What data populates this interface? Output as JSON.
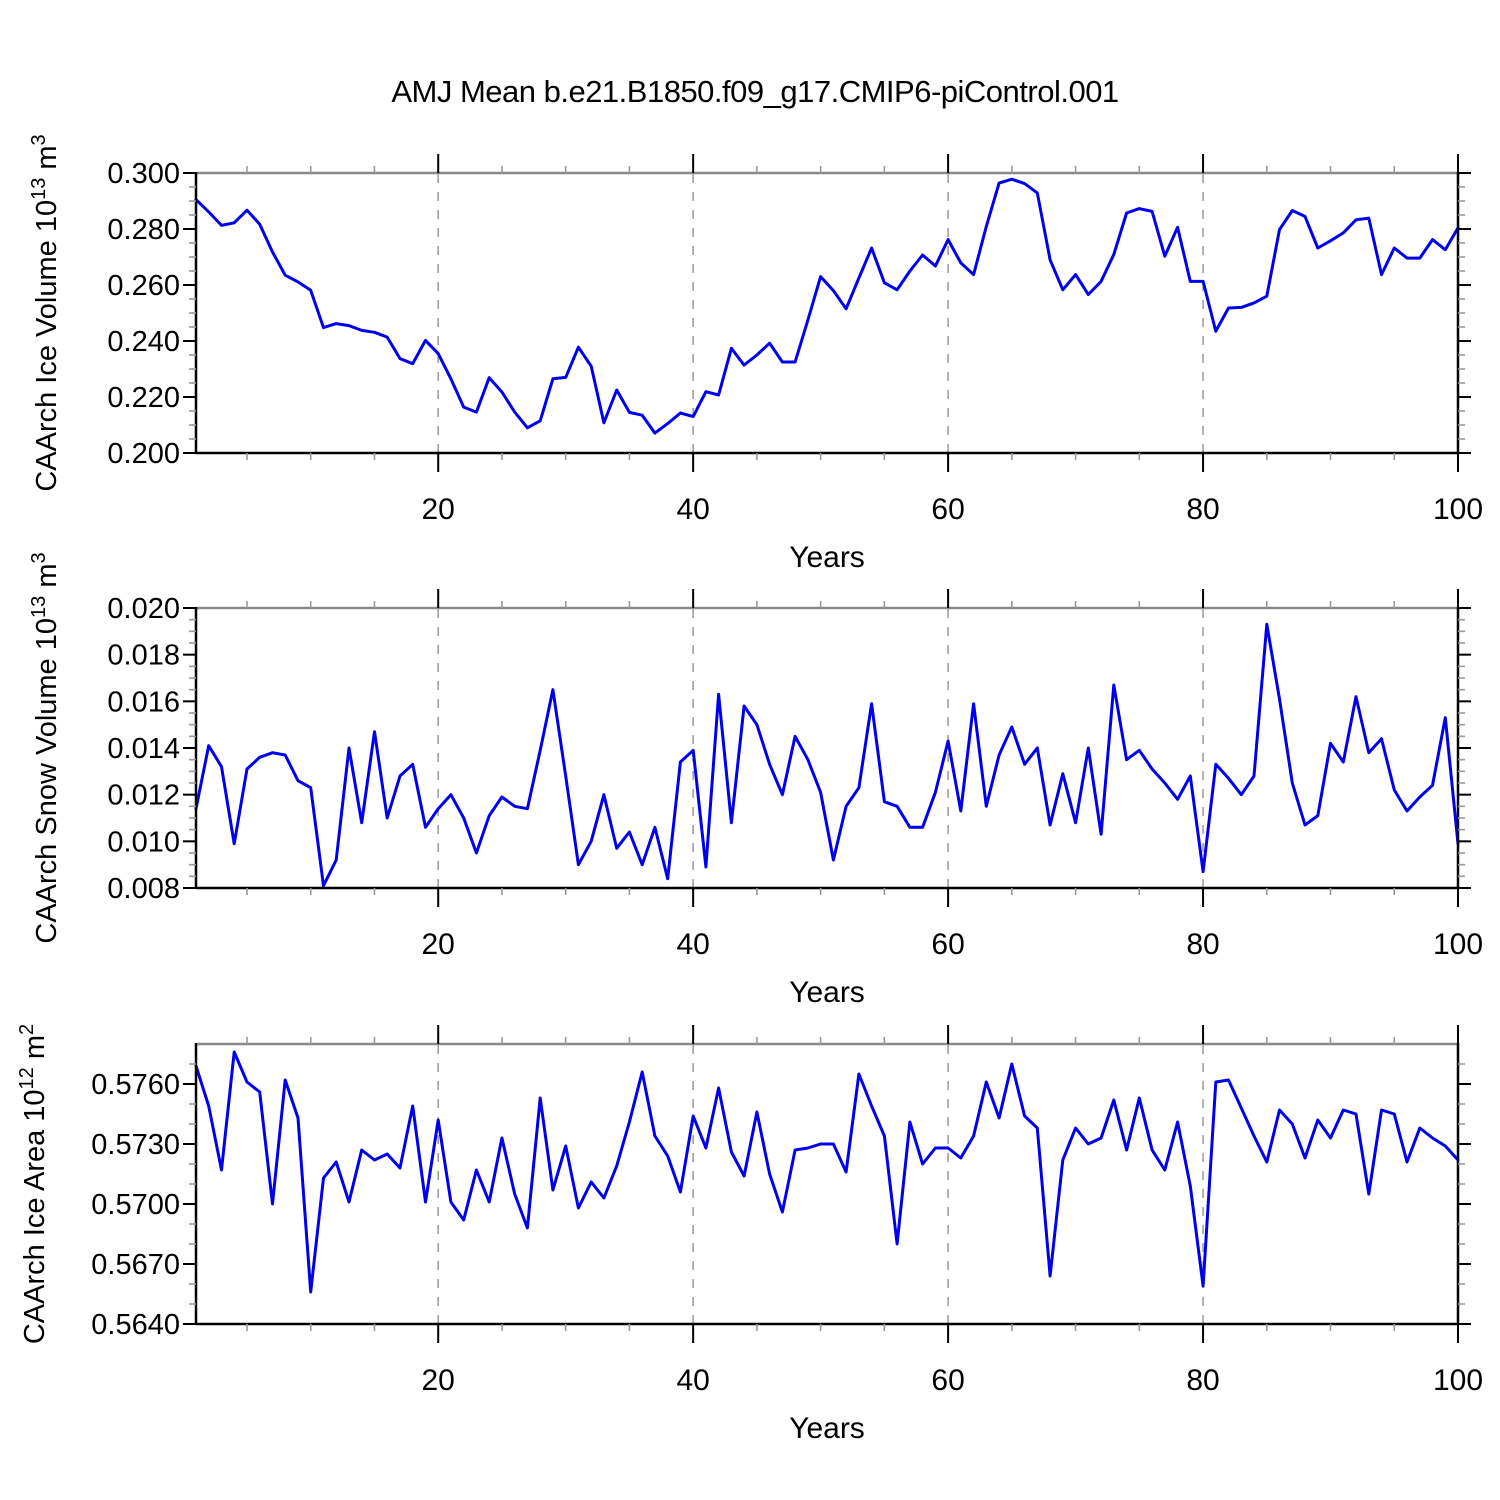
{
  "title": "AMJ Mean b.e21.B1850.f09_g17.CMIP6-piControl.001",
  "style": {
    "line_color": "#0000ee",
    "axis_color": "#000000",
    "frame_top_color": "#8a8a8a",
    "major_tick_color": "#000000",
    "minor_tick_color": "#999999",
    "grid_color": "#999999",
    "text_color": "#000000",
    "background": "#ffffff"
  },
  "x_axis": {
    "label": "Years",
    "min": 1,
    "max": 100,
    "major_ticks": [
      20,
      40,
      60,
      80,
      100
    ],
    "major_labels": [
      "20",
      "40",
      "60",
      "80",
      "100"
    ],
    "minor_step": 5,
    "gridlines": [
      20,
      40,
      60,
      80
    ]
  },
  "chart_data": [
    {
      "id": "ice-volume",
      "type": "line",
      "ylabel_parts": [
        {
          "t": "CAArch Ice Volume 10"
        },
        {
          "t": "13",
          "sup": true
        },
        {
          "t": " m"
        },
        {
          "t": "3",
          "sup": true
        }
      ],
      "xlabel": "Years",
      "ylim": [
        0.2,
        0.3
      ],
      "yticks": [
        {
          "v": 0.2,
          "label": "0.200"
        },
        {
          "v": 0.22,
          "label": "0.220"
        },
        {
          "v": 0.24,
          "label": "0.240"
        },
        {
          "v": 0.26,
          "label": "0.260"
        },
        {
          "v": 0.28,
          "label": "0.280"
        },
        {
          "v": 0.3,
          "label": "0.300"
        }
      ],
      "yminor_step": 0.005,
      "x_start": 1,
      "x_step": 1,
      "values": [
        0.2905,
        0.2861,
        0.2813,
        0.2822,
        0.2867,
        0.2817,
        0.2718,
        0.2635,
        0.2611,
        0.2581,
        0.2448,
        0.2462,
        0.2455,
        0.2438,
        0.2431,
        0.2414,
        0.2337,
        0.2319,
        0.2402,
        0.2355,
        0.2265,
        0.2164,
        0.2146,
        0.2269,
        0.2218,
        0.2146,
        0.209,
        0.2115,
        0.2265,
        0.227,
        0.2378,
        0.231,
        0.2108,
        0.2225,
        0.2145,
        0.2135,
        0.2071,
        0.2105,
        0.2143,
        0.213,
        0.2219,
        0.2207,
        0.2374,
        0.2314,
        0.235,
        0.2392,
        0.2325,
        0.2325,
        0.2475,
        0.263,
        0.258,
        0.2515,
        0.2625,
        0.2732,
        0.2608,
        0.2583,
        0.265,
        0.2707,
        0.2668,
        0.2762,
        0.2679,
        0.2637,
        0.2809,
        0.2964,
        0.2978,
        0.2962,
        0.2929,
        0.269,
        0.2583,
        0.2637,
        0.2566,
        0.2613,
        0.2709,
        0.2857,
        0.2873,
        0.2863,
        0.2703,
        0.2806,
        0.2613,
        0.2613,
        0.2435,
        0.2518,
        0.252,
        0.2536,
        0.256,
        0.2798,
        0.2866,
        0.2845,
        0.2732,
        0.2758,
        0.2786,
        0.2833,
        0.2839,
        0.2637,
        0.2732,
        0.2696,
        0.2696,
        0.2762,
        0.2726,
        0.2804
      ]
    },
    {
      "id": "snow-volume",
      "type": "line",
      "ylabel_parts": [
        {
          "t": "CAArch Snow Volume 10"
        },
        {
          "t": "13",
          "sup": true
        },
        {
          "t": " m"
        },
        {
          "t": "3",
          "sup": true
        }
      ],
      "xlabel": "Years",
      "ylim": [
        0.008,
        0.02
      ],
      "yticks": [
        {
          "v": 0.008,
          "label": "0.008"
        },
        {
          "v": 0.01,
          "label": "0.010"
        },
        {
          "v": 0.012,
          "label": "0.012"
        },
        {
          "v": 0.014,
          "label": "0.014"
        },
        {
          "v": 0.016,
          "label": "0.016"
        },
        {
          "v": 0.018,
          "label": "0.018"
        },
        {
          "v": 0.02,
          "label": "0.020"
        }
      ],
      "yminor_step": 0.0005,
      "x_start": 1,
      "x_step": 1,
      "values": [
        0.0114,
        0.0141,
        0.0132,
        0.0099,
        0.0131,
        0.0136,
        0.0138,
        0.0137,
        0.0126,
        0.0123,
        0.0081,
        0.0092,
        0.014,
        0.0108,
        0.0147,
        0.011,
        0.0128,
        0.0133,
        0.0106,
        0.0114,
        0.012,
        0.011,
        0.0095,
        0.0111,
        0.0119,
        0.0115,
        0.0114,
        0.0139,
        0.0165,
        0.0128,
        0.009,
        0.01,
        0.012,
        0.0097,
        0.0104,
        0.009,
        0.0106,
        0.0084,
        0.0134,
        0.0139,
        0.0089,
        0.0163,
        0.0108,
        0.0158,
        0.015,
        0.0133,
        0.012,
        0.0145,
        0.0135,
        0.0121,
        0.0092,
        0.0115,
        0.0123,
        0.0159,
        0.0117,
        0.0115,
        0.0106,
        0.0106,
        0.0121,
        0.0143,
        0.0113,
        0.0159,
        0.0115,
        0.0137,
        0.0149,
        0.0133,
        0.014,
        0.0107,
        0.0129,
        0.0108,
        0.014,
        0.0103,
        0.0167,
        0.0135,
        0.0139,
        0.0131,
        0.0125,
        0.0118,
        0.0128,
        0.0087,
        0.0133,
        0.0127,
        0.012,
        0.0128,
        0.0193,
        0.0161,
        0.0125,
        0.0107,
        0.0111,
        0.0142,
        0.0134,
        0.0162,
        0.0138,
        0.0144,
        0.0122,
        0.0113,
        0.0119,
        0.0124,
        0.0153,
        0.0099
      ]
    },
    {
      "id": "ice-area",
      "type": "line",
      "ylabel_parts": [
        {
          "t": "CAArch Ice Area 10"
        },
        {
          "t": "12",
          "sup": true
        },
        {
          "t": " m"
        },
        {
          "t": "2",
          "sup": true
        }
      ],
      "xlabel": "Years",
      "ylim": [
        0.564,
        0.578
      ],
      "yticks": [
        {
          "v": 0.564,
          "label": "0.5640"
        },
        {
          "v": 0.567,
          "label": "0.5670"
        },
        {
          "v": 0.57,
          "label": "0.5700"
        },
        {
          "v": 0.573,
          "label": "0.5730"
        },
        {
          "v": 0.576,
          "label": "0.5760"
        }
      ],
      "yminor_step": 0.001,
      "x_start": 1,
      "x_step": 1,
      "values": [
        0.5769,
        0.5749,
        0.5717,
        0.5776,
        0.5761,
        0.5756,
        0.57,
        0.5762,
        0.5743,
        0.5656,
        0.5713,
        0.5721,
        0.5701,
        0.5727,
        0.5722,
        0.5725,
        0.5718,
        0.5749,
        0.5701,
        0.5742,
        0.5701,
        0.5692,
        0.5717,
        0.5701,
        0.5733,
        0.5705,
        0.5688,
        0.5753,
        0.5707,
        0.5729,
        0.5698,
        0.5711,
        0.5703,
        0.5719,
        0.5741,
        0.5766,
        0.5734,
        0.5724,
        0.5706,
        0.5744,
        0.5728,
        0.5758,
        0.5726,
        0.5714,
        0.5746,
        0.5715,
        0.5696,
        0.5727,
        0.5728,
        0.573,
        0.573,
        0.5716,
        0.5765,
        0.5749,
        0.5734,
        0.568,
        0.5741,
        0.572,
        0.5728,
        0.5728,
        0.5723,
        0.5734,
        0.5761,
        0.5743,
        0.577,
        0.5744,
        0.5738,
        0.5664,
        0.5722,
        0.5738,
        0.573,
        0.5733,
        0.5752,
        0.5727,
        0.5753,
        0.5727,
        0.5717,
        0.5741,
        0.5709,
        0.5659,
        0.5761,
        0.5762,
        0.5748,
        0.5734,
        0.5721,
        0.5747,
        0.574,
        0.5723,
        0.5742,
        0.5733,
        0.5747,
        0.5745,
        0.5705,
        0.5747,
        0.5745,
        0.5721,
        0.5738,
        0.5733,
        0.5729,
        0.5722
      ]
    }
  ]
}
